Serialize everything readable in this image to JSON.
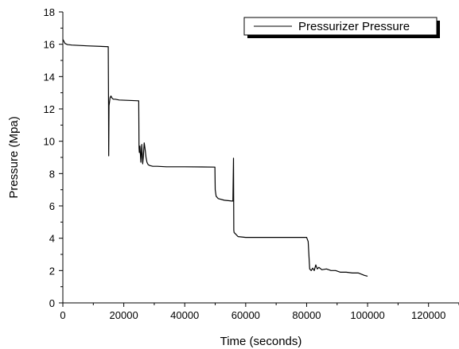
{
  "chart_data": {
    "type": "line",
    "xlabel": "Time (seconds)",
    "ylabel": "Pressure (Mpa)",
    "xlim": [
      0,
      130000
    ],
    "ylim": [
      0,
      18
    ],
    "x_ticks": [
      0,
      20000,
      40000,
      60000,
      80000,
      100000,
      120000
    ],
    "x_tick_labels": [
      "0",
      "20000",
      "40000",
      "60000",
      "80000",
      "100000",
      "120000"
    ],
    "y_ticks": [
      0,
      2,
      4,
      6,
      8,
      10,
      12,
      14,
      16,
      18
    ],
    "y_tick_labels": [
      "0",
      "2",
      "4",
      "6",
      "8",
      "10",
      "12",
      "14",
      "16",
      "18"
    ],
    "grid": false,
    "legend_position": "top-right",
    "series": [
      {
        "name": "Pressurizer Pressure",
        "color": "#000000",
        "x": [
          0,
          300,
          700,
          1500,
          3000,
          8000,
          14900,
          15000,
          15050,
          15150,
          15300,
          15500,
          15800,
          16200,
          16600,
          17200,
          18500,
          24900,
          25000,
          25100,
          25300,
          25600,
          25900,
          26200,
          26400,
          26700,
          27000,
          27300,
          27600,
          28000,
          28500,
          29500,
          31000,
          34000,
          40000,
          49900,
          50000,
          50300,
          51000,
          53000,
          55500,
          55800,
          56000,
          56100,
          56200,
          56500,
          57500,
          60000,
          70000,
          80000,
          80500,
          81000,
          81500,
          82000,
          82500,
          83000,
          83500,
          84000,
          85000,
          86500,
          88000,
          89500,
          91000,
          93000,
          95000,
          97000,
          99000,
          100000
        ],
        "y": [
          16.3,
          16.2,
          16.05,
          15.98,
          15.95,
          15.9,
          15.85,
          12.2,
          9.1,
          12.2,
          12.4,
          12.7,
          12.8,
          12.65,
          12.6,
          12.6,
          12.55,
          12.5,
          9.6,
          9.3,
          9.7,
          8.7,
          9.8,
          8.6,
          9.0,
          9.9,
          9.5,
          9.0,
          8.7,
          8.55,
          8.5,
          8.45,
          8.45,
          8.42,
          8.42,
          8.4,
          7.0,
          6.6,
          6.45,
          6.35,
          6.3,
          6.3,
          8.95,
          4.5,
          4.35,
          4.3,
          4.1,
          4.05,
          4.05,
          4.05,
          3.8,
          2.1,
          2.0,
          2.15,
          2.0,
          2.35,
          2.1,
          2.2,
          2.05,
          2.1,
          2.0,
          2.0,
          1.9,
          1.9,
          1.85,
          1.85,
          1.7,
          1.65
        ]
      }
    ]
  }
}
